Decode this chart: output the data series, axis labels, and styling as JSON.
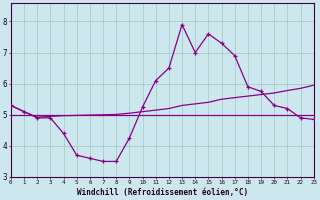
{
  "xlabel": "Windchill (Refroidissement éolien,°C)",
  "background_color": "#cce8ee",
  "grid_color": "#aacccc",
  "line_color": "#880088",
  "wc_vals": [
    5.3,
    5.1,
    4.9,
    4.9,
    4.4,
    3.7,
    3.6,
    3.5,
    3.5,
    4.25,
    5.25,
    6.1,
    6.5,
    7.9,
    7.0,
    7.6,
    7.3,
    6.9,
    5.9,
    5.75,
    5.3,
    5.2,
    4.9,
    4.85
  ],
  "flat_line": [
    5.0,
    5.0,
    5.0,
    5.0,
    5.0,
    5.0,
    5.0,
    5.0,
    5.0,
    5.0,
    5.0,
    5.0,
    5.0,
    5.0,
    5.0,
    5.0,
    5.0,
    5.0,
    5.0,
    5.0,
    5.0,
    5.0,
    5.0,
    5.0
  ],
  "rising_line": [
    5.3,
    5.1,
    4.92,
    4.95,
    4.97,
    4.98,
    4.99,
    5.0,
    5.01,
    5.05,
    5.1,
    5.15,
    5.2,
    5.3,
    5.35,
    5.4,
    5.5,
    5.55,
    5.6,
    5.65,
    5.7,
    5.78,
    5.85,
    5.95
  ],
  "ylim": [
    3.0,
    8.6
  ],
  "xlim": [
    0,
    23
  ],
  "yticks": [
    3,
    4,
    5,
    6,
    7,
    8
  ],
  "xticks": [
    0,
    1,
    2,
    3,
    4,
    5,
    6,
    7,
    8,
    9,
    10,
    11,
    12,
    13,
    14,
    15,
    16,
    17,
    18,
    19,
    20,
    21,
    22,
    23
  ]
}
